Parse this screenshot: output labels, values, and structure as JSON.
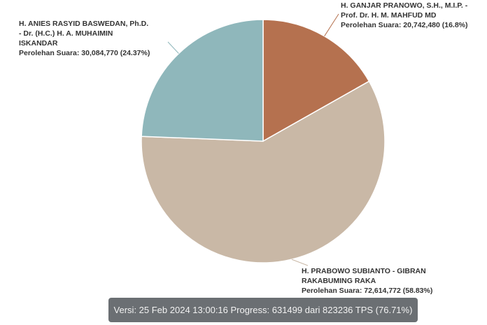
{
  "chart_data": {
    "type": "pie",
    "slices": [
      {
        "name_lines": [
          "H. GANJAR PRANOWO, S.H., M.I.P. -",
          "Prof. Dr. H. M. MAHFUD MD"
        ],
        "value": 20742480,
        "value_text": "Perolehan Suara: 20,742,480 (16.8%)",
        "percent": 16.8,
        "color": "#b5714f"
      },
      {
        "name_lines": [
          "H. PRABOWO SUBIANTO - GIBRAN",
          "RAKABUMING RAKA"
        ],
        "value": 72614772,
        "value_text": "Perolehan Suara: 72,614,772 (58.83%)",
        "percent": 58.83,
        "color": "#c9b8a6"
      },
      {
        "name_lines": [
          "H. ANIES RASYID BASWEDAN, Ph.D.",
          "- Dr. (H.C.) H. A. MUHAIMIN",
          "ISKANDAR"
        ],
        "value": 30084770,
        "value_text": "Perolehan Suara: 30,084,770 (24.37%)",
        "percent": 24.37,
        "color": "#8fb7bb"
      }
    ],
    "start": "top",
    "direction": "clockwise",
    "connector_color": "#b5714f"
  },
  "footer": {
    "text": "Versi: 25 Feb 2024 13:00:16 Progress: 631499 dari 823236 TPS (76.71%)"
  }
}
